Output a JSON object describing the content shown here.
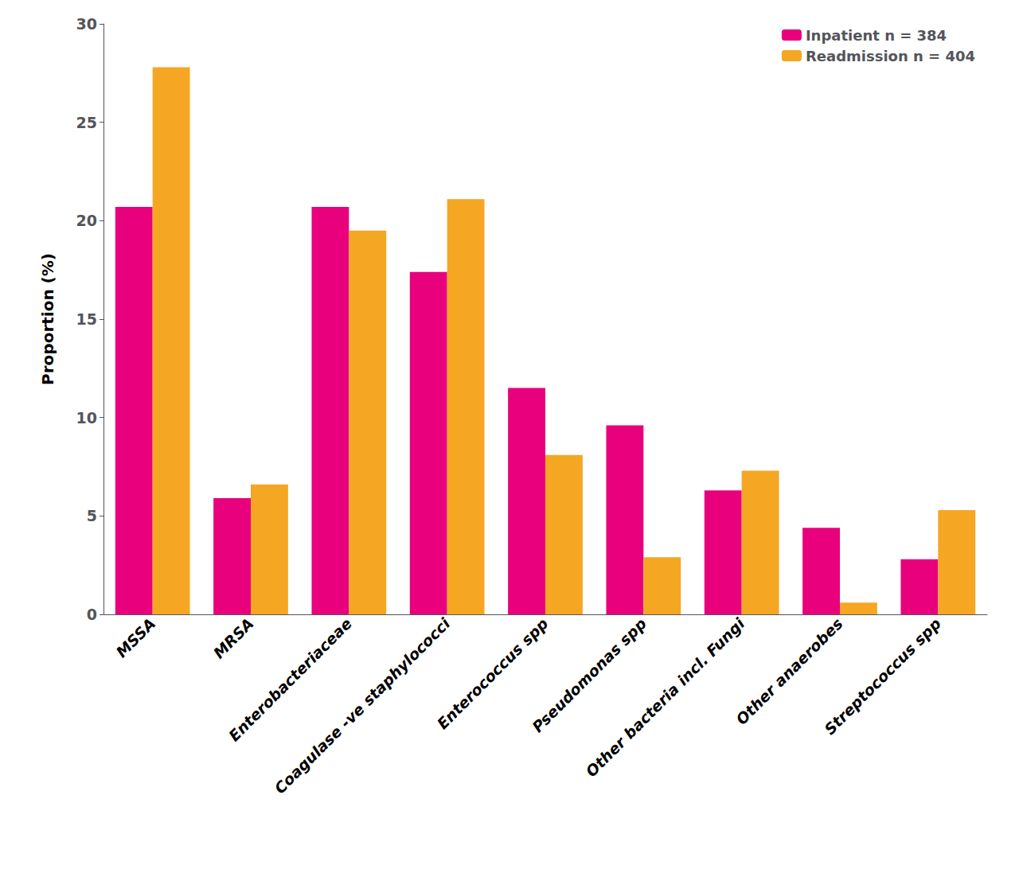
{
  "chart_data": {
    "type": "bar",
    "categories": [
      "MSSA",
      "MRSA",
      "Enterobacteriaceae",
      "Coagulase -ve staphylococci",
      "Enterococcus spp",
      "Pseudomonas spp",
      "Other bacteria incl. Fungi",
      "Other anaerobes",
      "Streptococcus spp"
    ],
    "series": [
      {
        "name": "Inpatient n = 384",
        "color": "#E8007D",
        "values": [
          20.7,
          5.9,
          20.7,
          17.4,
          11.5,
          9.6,
          6.3,
          4.4,
          2.8
        ]
      },
      {
        "name": "Readmission n = 404",
        "color": "#F5A623",
        "values": [
          27.8,
          6.6,
          19.5,
          21.1,
          8.1,
          2.9,
          7.3,
          0.6,
          5.3
        ]
      }
    ],
    "ylabel": "Proportion (%)",
    "ylim": [
      0,
      30
    ],
    "yticks": [
      0,
      5,
      10,
      15,
      20,
      25,
      30
    ],
    "grid": false,
    "legend": "upper right"
  }
}
